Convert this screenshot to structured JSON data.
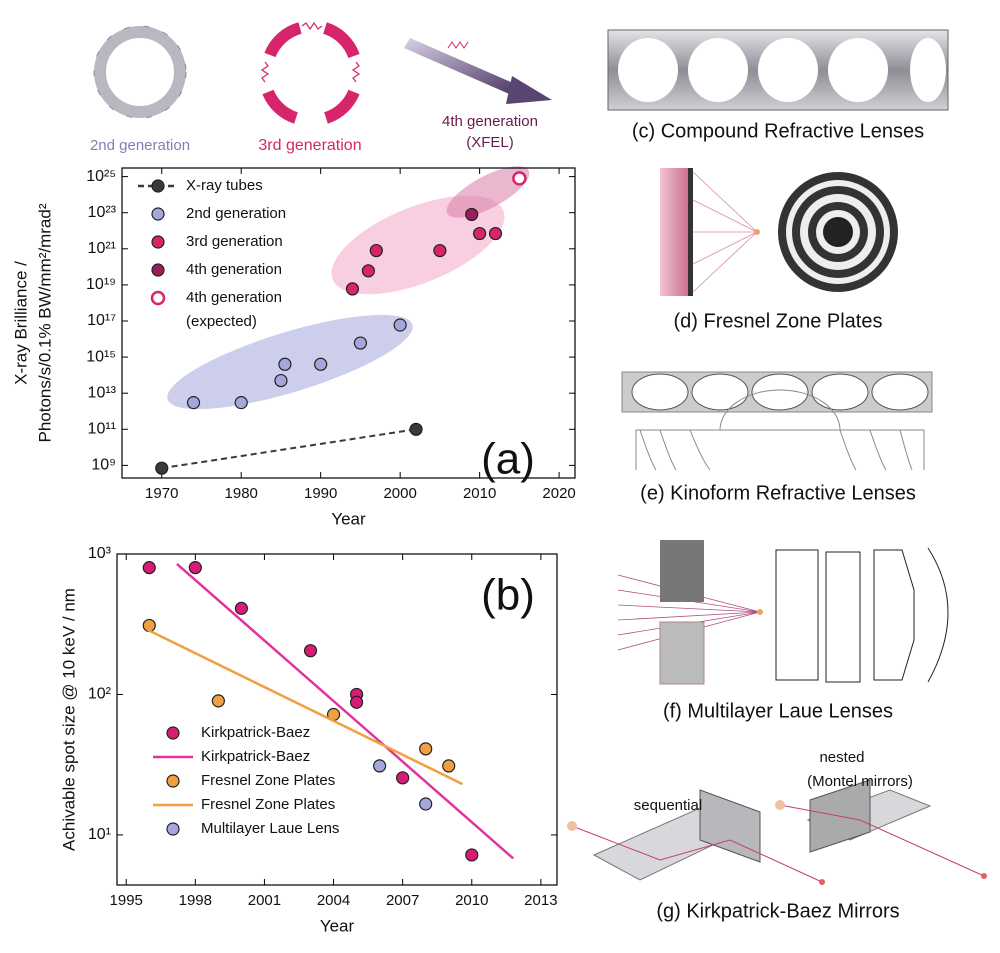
{
  "chart_data": [
    {
      "type": "scatter",
      "ylabel": [
        "X-ray Brilliance /",
        "Photons/s/0.1% BW/mm²/mrad²"
      ],
      "xlabel": "Year",
      "annotation": "(a)",
      "xlim": [
        1965,
        2022
      ],
      "xticks": [
        1970,
        1980,
        1990,
        2000,
        2010,
        2020
      ],
      "ylim": [
        200000000.0,
        3e+25
      ],
      "yscale": "log",
      "yticks": [
        {
          "value": 1000000000.0,
          "label": "10⁹"
        },
        {
          "value": 100000000000.0,
          "label": "10¹¹"
        },
        {
          "value": 10000000000000.0,
          "label": "10¹³"
        },
        {
          "value": 1000000000000000.0,
          "label": "10¹⁵"
        },
        {
          "value": 1e+17,
          "label": "10¹⁷"
        },
        {
          "value": 1e+19,
          "label": "10¹⁹"
        },
        {
          "value": 1e+21,
          "label": "10²¹"
        },
        {
          "value": 1e+23,
          "label": "10²³"
        },
        {
          "value": 1e+25,
          "label": "10²⁵"
        }
      ],
      "series": [
        {
          "name": "X-ray tubes",
          "color": "#3a3a3a",
          "line": "dashed",
          "x": [
            1970,
            2002
          ],
          "values": [
            700000000.0,
            100000000000.0
          ]
        },
        {
          "name": "2nd generation",
          "color": "#a4a6dc",
          "x": [
            1974,
            1980,
            1985,
            1985.5,
            1990,
            1995,
            2000
          ],
          "values": [
            3000000000000.0,
            3000000000000.0,
            50000000000000.0,
            400000000000000.0,
            400000000000000.0,
            6000000000000000.0,
            6e+16
          ]
        },
        {
          "name": "3rd generation",
          "color": "#d6256b",
          "x": [
            1994,
            1996,
            1997,
            2005,
            2010,
            2012
          ],
          "values": [
            6e+18,
            6e+19,
            8e+20,
            8e+20,
            7e+21,
            7e+21
          ]
        },
        {
          "name": "4th generation",
          "color": "#9c1c5c",
          "x": [
            2009
          ],
          "values": [
            8e+22
          ]
        },
        {
          "name": "4th generation (expected)",
          "color": "#d6256b",
          "hollow": true,
          "x": [
            2015
          ],
          "values": [
            8e+24
          ]
        }
      ]
    },
    {
      "type": "scatter",
      "ylabel": [
        "Achivable spot size @ 10 keV / nm"
      ],
      "xlabel": "Year",
      "annotation": "(b)",
      "xlim": [
        1994.6,
        2013.7
      ],
      "xticks": [
        1995,
        1998,
        2001,
        2004,
        2007,
        2010,
        2013
      ],
      "ylim": [
        4.4,
        1000
      ],
      "yscale": "log",
      "yticks": [
        {
          "value": 10,
          "label": "10¹"
        },
        {
          "value": 100,
          "label": "10²"
        },
        {
          "value": 1000,
          "label": "10³"
        }
      ],
      "series": [
        {
          "name": "Kirkpatrick-Baez",
          "color": "#d81b74",
          "x": [
            1996,
            1998,
            2000,
            2003,
            2005,
            2005,
            2007,
            2010
          ],
          "values": [
            800,
            800,
            410,
            205,
            100,
            88,
            25.5,
            7.2
          ]
        },
        {
          "name": "Kirkpatrick-Baez",
          "color": "#e0349a",
          "style": "line",
          "x": [
            1997.2,
            2011.8
          ],
          "values": [
            850,
            6.8
          ]
        },
        {
          "name": "Fresnel Zone Plates",
          "color": "#f0a040",
          "x": [
            1996,
            1999,
            2004,
            2008,
            2009
          ],
          "values": [
            310,
            90,
            72,
            41,
            31
          ]
        },
        {
          "name": "Fresnel Zone Plates",
          "color": "#f0a040",
          "style": "line",
          "x": [
            1995.9,
            2009.6
          ],
          "values": [
            290,
            23
          ]
        },
        {
          "name": "Multilayer Laue Lens",
          "color": "#a4a6dc",
          "x": [
            2006,
            2008
          ],
          "values": [
            31,
            16.6
          ]
        }
      ]
    }
  ],
  "diagrams": {
    "gen2": "2nd generation",
    "gen3": "3rd generation",
    "gen4": "4th generation",
    "gen4_sub": "(XFEL)",
    "c": "(c) Compound Refractive Lenses",
    "d": "(d) Fresnel Zone Plates",
    "e": "(e) Kinoform Refractive Lenses",
    "f": "(f) Multilayer Laue Lenses",
    "g": "(g) Kirkpatrick-Baez Mirrors",
    "sequential": "sequential",
    "nested": "nested",
    "montel": "(Montel mirrors)"
  }
}
